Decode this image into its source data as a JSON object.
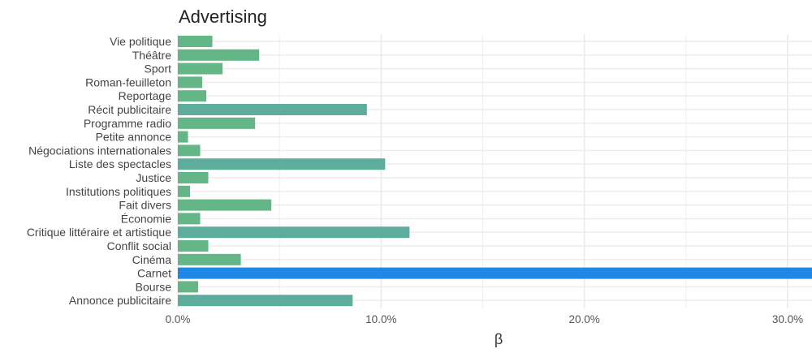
{
  "chart_data": {
    "type": "bar",
    "orientation": "horizontal",
    "title": "Advertising",
    "xlabel": "β",
    "ylabel": "",
    "xlim": [
      0,
      31.2
    ],
    "x_ticks": [
      0,
      10,
      20,
      30
    ],
    "x_tick_labels": [
      "0.0%",
      "10.0%",
      "20.0%",
      "30.0%"
    ],
    "grid": true,
    "legend": "none",
    "categories": [
      "Vie politique",
      "Théâtre",
      "Sport",
      "Roman-feuilleton",
      "Reportage",
      "Récit publicitaire",
      "Programme radio",
      "Petite annonce",
      "Négociations internationales",
      "Liste des spectacles",
      "Justice",
      "Institutions politiques",
      "Fait divers",
      "Économie",
      "Critique littéraire et artistique",
      "Conflit social",
      "Cinéma",
      "Carnet",
      "Bourse",
      "Annonce publicitaire"
    ],
    "values": [
      1.7,
      4.0,
      2.2,
      1.2,
      1.4,
      9.3,
      3.8,
      0.5,
      1.1,
      10.2,
      1.5,
      0.6,
      4.6,
      1.1,
      11.4,
      1.5,
      3.1,
      31.2,
      1.0,
      8.6
    ],
    "bar_colors": [
      "#64b687",
      "#64b687",
      "#64b687",
      "#64b687",
      "#64b687",
      "#5eac9b",
      "#64b687",
      "#64b687",
      "#64b687",
      "#5eac9b",
      "#64b687",
      "#64b687",
      "#64b687",
      "#64b687",
      "#5eac9b",
      "#64b687",
      "#64b687",
      "#1f88e5",
      "#64b687",
      "#5eac9b"
    ],
    "grid_color": "#ebebeb"
  }
}
